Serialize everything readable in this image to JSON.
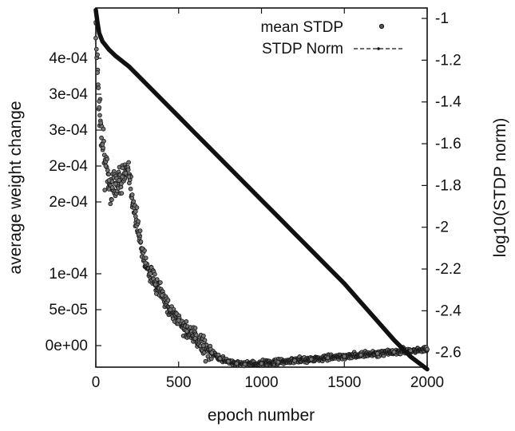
{
  "chart_data": {
    "type": "scatter",
    "xlabel": "epoch number",
    "ylabel_left": "average weight change",
    "ylabel_right": "log10(STDP norm)",
    "x_ticks": [
      0,
      500,
      1000,
      1500,
      2000
    ],
    "xlim": [
      0,
      2000
    ],
    "y_left_ticks": [
      "4e-04",
      "3e-04",
      "3e-04",
      "2e-04",
      "2e-04",
      "1e-04",
      "5e-05",
      "0e+00"
    ],
    "y_left_tick_values": [
      0.0004,
      0.00035,
      0.0003,
      0.00025,
      0.0002,
      0.0001,
      5e-05,
      0.0
    ],
    "ylim_left": [
      -3e-05,
      0.00047
    ],
    "y_right_ticks": [
      "-1",
      "-1.2",
      "-1.4",
      "-1.6",
      "-1.8",
      "-2",
      "-2.2",
      "-2.4",
      "-2.6"
    ],
    "y_right_tick_values": [
      -1.0,
      -1.2,
      -1.4,
      -1.6,
      -1.8,
      -2.0,
      -2.2,
      -2.4,
      -2.6
    ],
    "ylim_right": [
      -2.67,
      -0.95
    ],
    "legend": {
      "position": "top-right",
      "entries": [
        "mean STDP",
        "STDP Norm"
      ]
    },
    "series": [
      {
        "name": "mean STDP",
        "axis": "left",
        "style": "points",
        "x": [
          0,
          10,
          20,
          30,
          40,
          60,
          80,
          100,
          120,
          140,
          160,
          180,
          200,
          220,
          240,
          260,
          280,
          300,
          330,
          360,
          400,
          450,
          500,
          550,
          600,
          650,
          700,
          750,
          800,
          850,
          900,
          1000,
          1100,
          1200,
          1300,
          1400,
          1500,
          1600,
          1700,
          1800,
          1900,
          2000
        ],
        "y": [
          0.00045,
          0.00038,
          0.00034,
          0.00031,
          0.00028,
          0.00025,
          0.00023,
          0.00022,
          0.000225,
          0.00023,
          0.000235,
          0.00024,
          0.000235,
          0.00021,
          0.00018,
          0.000155,
          0.000135,
          0.000115,
          0.0001,
          8.5e-05,
          7e-05,
          5e-05,
          3.5e-05,
          2e-05,
          1e-05,
          0.0,
          -1e-05,
          -1.8e-05,
          -2.2e-05,
          -2.5e-05,
          -2.6e-05,
          -2.5e-05,
          -2.3e-05,
          -2.1e-05,
          -1.9e-05,
          -1.7e-05,
          -1.5e-05,
          -1.3e-05,
          -1.1e-05,
          -9e-06,
          -7e-06,
          -5e-06
        ]
      },
      {
        "name": "STDP Norm",
        "axis": "right",
        "style": "line",
        "x": [
          0,
          10,
          20,
          40,
          80,
          120,
          200,
          300,
          400,
          500,
          600,
          700,
          800,
          900,
          1000,
          1100,
          1200,
          1300,
          1400,
          1500,
          1600,
          1700,
          1800,
          1900,
          2000
        ],
        "y": [
          -0.96,
          -1.02,
          -1.07,
          -1.11,
          -1.15,
          -1.18,
          -1.23,
          -1.31,
          -1.39,
          -1.47,
          -1.55,
          -1.63,
          -1.71,
          -1.79,
          -1.87,
          -1.95,
          -2.03,
          -2.11,
          -2.19,
          -2.27,
          -2.36,
          -2.45,
          -2.54,
          -2.62,
          -2.68
        ]
      }
    ]
  }
}
